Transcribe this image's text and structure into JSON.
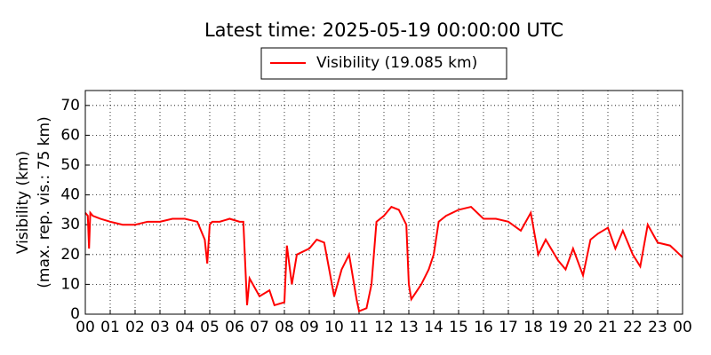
{
  "chart_data": {
    "type": "line",
    "title": "Latest time: 2025-05-19 00:00:00 UTC",
    "ylabel": [
      "Visibility (km)",
      "(max. rep. vis.: 75 km)"
    ],
    "series": [
      {
        "name": "Visibility (19.085 km)",
        "color": "#ff0000",
        "x": [
          0,
          0.1,
          0.15,
          0.2,
          0.3,
          0.6,
          1,
          1.5,
          2,
          2.5,
          3,
          3.5,
          4,
          4.5,
          4.8,
          4.9,
          5.0,
          5.1,
          5.4,
          5.8,
          6.2,
          6.35,
          6.5,
          6.6,
          7,
          7.4,
          7.6,
          8,
          8.1,
          8.3,
          8.5,
          9,
          9.3,
          9.6,
          9.8,
          10,
          10.3,
          10.6,
          10.9,
          11,
          11.3,
          11.5,
          11.7,
          12,
          12.3,
          12.6,
          12.9,
          13,
          13.1,
          13.5,
          13.8,
          14,
          14.2,
          14.5,
          15,
          15.5,
          16,
          16.5,
          17,
          17.5,
          17.9,
          18.2,
          18.5,
          19,
          19.3,
          19.6,
          20,
          20.3,
          20.6,
          21,
          21.3,
          21.6,
          22,
          22.3,
          22.6,
          23,
          23.5,
          24
        ],
        "values": [
          34,
          33,
          22,
          34,
          33,
          32,
          31,
          30,
          30,
          31,
          31,
          32,
          32,
          31,
          25,
          17,
          30,
          31,
          31,
          32,
          31,
          31,
          3,
          12,
          6,
          8,
          3,
          4,
          23,
          10,
          20,
          22,
          25,
          24,
          15,
          6,
          15,
          20,
          5,
          1,
          2,
          10,
          31,
          33,
          36,
          35,
          30,
          10,
          5,
          10,
          15,
          20,
          31,
          33,
          35,
          36,
          32,
          32,
          31,
          28,
          34,
          20,
          25,
          18,
          15,
          22,
          13,
          25,
          27,
          29,
          22,
          28,
          20,
          16,
          30,
          24,
          23,
          19.085
        ]
      }
    ],
    "xlim": [
      0,
      24
    ],
    "xticks": [
      {
        "value": 0,
        "label": "00"
      },
      {
        "value": 1,
        "label": "01"
      },
      {
        "value": 2,
        "label": "02"
      },
      {
        "value": 3,
        "label": "03"
      },
      {
        "value": 4,
        "label": "04"
      },
      {
        "value": 5,
        "label": "05"
      },
      {
        "value": 6,
        "label": "06"
      },
      {
        "value": 7,
        "label": "07"
      },
      {
        "value": 8,
        "label": "08"
      },
      {
        "value": 9,
        "label": "09"
      },
      {
        "value": 10,
        "label": "10"
      },
      {
        "value": 11,
        "label": "11"
      },
      {
        "value": 12,
        "label": "12"
      },
      {
        "value": 13,
        "label": "13"
      },
      {
        "value": 14,
        "label": "14"
      },
      {
        "value": 15,
        "label": "15"
      },
      {
        "value": 16,
        "label": "16"
      },
      {
        "value": 17,
        "label": "17"
      },
      {
        "value": 18,
        "label": "18"
      },
      {
        "value": 19,
        "label": "19"
      },
      {
        "value": 20,
        "label": "20"
      },
      {
        "value": 21,
        "label": "21"
      },
      {
        "value": 22,
        "label": "22"
      },
      {
        "value": 23,
        "label": "23"
      },
      {
        "value": 24,
        "label": "00"
      }
    ],
    "ylim": [
      0,
      75
    ],
    "yticks": [
      0,
      10,
      20,
      30,
      40,
      50,
      60,
      70
    ],
    "grid": true
  }
}
